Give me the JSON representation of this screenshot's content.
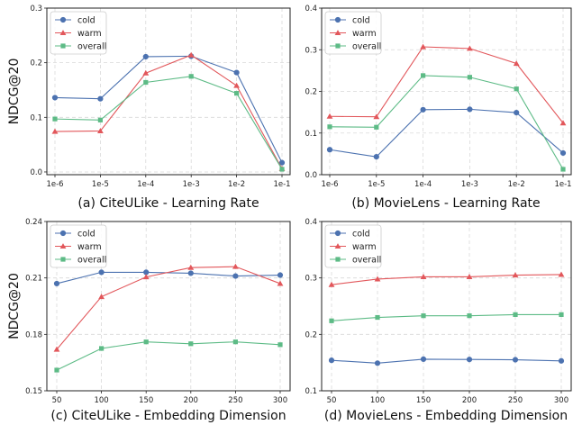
{
  "chart_data": [
    {
      "type": "line",
      "caption": "(a) CiteULike - Learning Rate",
      "ylabel": "NDCG@20",
      "categories": [
        "1e-6",
        "1e-5",
        "1e-4",
        "1e-3",
        "1e-2",
        "1e-1"
      ],
      "ylim": [
        -0.005,
        0.3
      ],
      "yticks": [
        0.0,
        0.1,
        0.2,
        0.3
      ],
      "ytick_labels": [
        "0.0",
        "0.1",
        "0.2",
        "0.3"
      ],
      "grid": true,
      "legend_position": "top-left",
      "series": [
        {
          "name": "cold",
          "color": "#4C72B0",
          "marker": "circle",
          "values": [
            0.136,
            0.134,
            0.211,
            0.212,
            0.182,
            0.017
          ]
        },
        {
          "name": "warm",
          "color": "#E2575B",
          "marker": "triangle",
          "values": [
            0.074,
            0.075,
            0.181,
            0.214,
            0.158,
            0.006
          ]
        },
        {
          "name": "overall",
          "color": "#5DBB86",
          "marker": "square",
          "values": [
            0.097,
            0.095,
            0.164,
            0.175,
            0.144,
            0.005
          ]
        }
      ]
    },
    {
      "type": "line",
      "caption": "(b) MovieLens - Learning Rate",
      "ylabel": "",
      "categories": [
        "1e-6",
        "1e-5",
        "1e-4",
        "1e-3",
        "1e-2",
        "1e-1"
      ],
      "ylim": [
        0.0,
        0.4
      ],
      "yticks": [
        0.0,
        0.1,
        0.2,
        0.3,
        0.4
      ],
      "ytick_labels": [
        "0.0",
        "0.1",
        "0.2",
        "0.3",
        "0.4"
      ],
      "grid": true,
      "legend_position": "top-left",
      "series": [
        {
          "name": "cold",
          "color": "#4C72B0",
          "marker": "circle",
          "values": [
            0.06,
            0.043,
            0.156,
            0.157,
            0.149,
            0.052
          ]
        },
        {
          "name": "warm",
          "color": "#E2575B",
          "marker": "triangle",
          "values": [
            0.14,
            0.139,
            0.307,
            0.303,
            0.267,
            0.124
          ]
        },
        {
          "name": "overall",
          "color": "#5DBB86",
          "marker": "square",
          "values": [
            0.115,
            0.114,
            0.238,
            0.234,
            0.206,
            0.013
          ]
        }
      ]
    },
    {
      "type": "line",
      "caption": "(c) CiteULike - Embedding Dimension",
      "ylabel": "NDCG@20",
      "categories": [
        "50",
        "100",
        "150",
        "200",
        "250",
        "300"
      ],
      "ylim": [
        0.15,
        0.24
      ],
      "yticks": [
        0.15,
        0.18,
        0.21,
        0.24
      ],
      "ytick_labels": [
        "0.15",
        "0.18",
        "0.21",
        "0.24"
      ],
      "grid": true,
      "legend_position": "top-left",
      "series": [
        {
          "name": "cold",
          "color": "#4C72B0",
          "marker": "circle",
          "values": [
            0.207,
            0.213,
            0.213,
            0.2125,
            0.211,
            0.2115
          ]
        },
        {
          "name": "warm",
          "color": "#E2575B",
          "marker": "triangle",
          "values": [
            0.172,
            0.2,
            0.2105,
            0.2155,
            0.216,
            0.207
          ]
        },
        {
          "name": "overall",
          "color": "#5DBB86",
          "marker": "square",
          "values": [
            0.161,
            0.1725,
            0.176,
            0.175,
            0.176,
            0.1745
          ]
        }
      ]
    },
    {
      "type": "line",
      "caption": "(d) MovieLens - Embedding Dimension",
      "ylabel": "",
      "categories": [
        "50",
        "100",
        "150",
        "200",
        "250",
        "300"
      ],
      "ylim": [
        0.1,
        0.4
      ],
      "yticks": [
        0.1,
        0.2,
        0.3,
        0.4
      ],
      "ytick_labels": [
        "0.1",
        "0.2",
        "0.3",
        "0.4"
      ],
      "grid": true,
      "legend_position": "top-left",
      "series": [
        {
          "name": "cold",
          "color": "#4C72B0",
          "marker": "circle",
          "values": [
            0.154,
            0.149,
            0.156,
            0.1555,
            0.155,
            0.153
          ]
        },
        {
          "name": "warm",
          "color": "#E2575B",
          "marker": "triangle",
          "values": [
            0.288,
            0.298,
            0.302,
            0.302,
            0.305,
            0.306
          ]
        },
        {
          "name": "overall",
          "color": "#5DBB86",
          "marker": "square",
          "values": [
            0.224,
            0.23,
            0.233,
            0.233,
            0.235,
            0.235
          ]
        }
      ]
    }
  ]
}
